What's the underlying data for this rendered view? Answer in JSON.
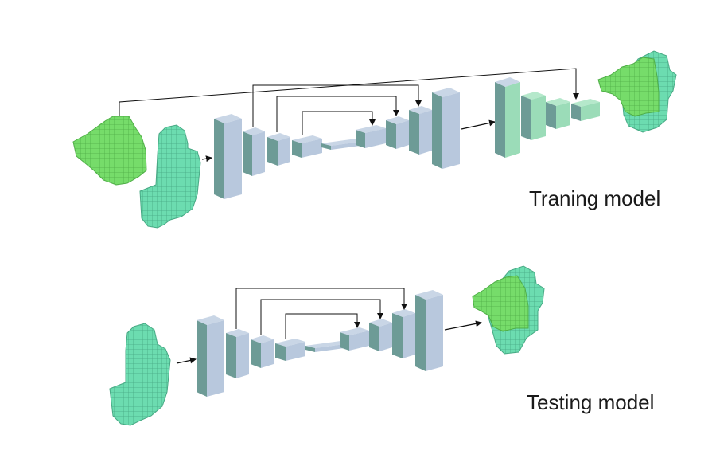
{
  "labels": {
    "training": "Traning model",
    "testing": "Testing model"
  },
  "colors": {
    "block_front": "#b8c8dd",
    "block_top": "#c9d6e6",
    "block_side": "#6d9b96",
    "decoder_front": "#9bdcb8",
    "decoder_top": "#b5e8cb",
    "voxel_green": "#76dc6a",
    "voxel_teal": "#6cdcb0",
    "line": "#111111"
  }
}
